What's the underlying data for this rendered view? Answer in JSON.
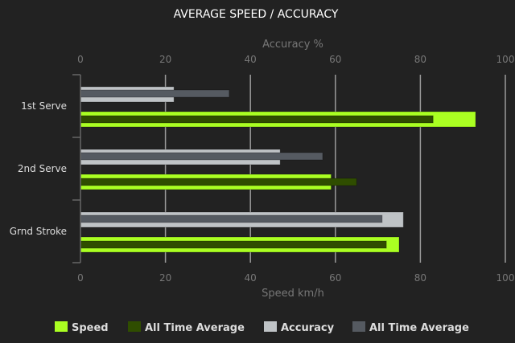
{
  "chart_data": {
    "type": "bar",
    "orientation": "horizontal",
    "title": "AVERAGE SPEED / ACCURACY",
    "top_axis_label": "Accuracy %",
    "bottom_axis_label": "Speed km/h",
    "xlim": [
      0,
      100
    ],
    "ticks": [
      "0",
      "20",
      "40",
      "60",
      "80",
      "100"
    ],
    "grid": true,
    "legend_position": "bottom",
    "categories": [
      "1st Serve",
      "2nd Serve",
      "Grnd Stroke"
    ],
    "series": [
      {
        "name": "Speed",
        "axis": "bottom",
        "values": [
          93,
          59,
          75
        ],
        "color": "#aaff22"
      },
      {
        "name": "All Time Average",
        "axis": "bottom",
        "values": [
          83,
          65,
          72
        ],
        "color": "#2f4d00"
      },
      {
        "name": "Accuracy",
        "axis": "top",
        "values": [
          22,
          47,
          76
        ],
        "color": "#bfc3c6"
      },
      {
        "name": "All Time Average",
        "axis": "top",
        "values": [
          35,
          57,
          71
        ],
        "color": "#555a61"
      }
    ]
  }
}
